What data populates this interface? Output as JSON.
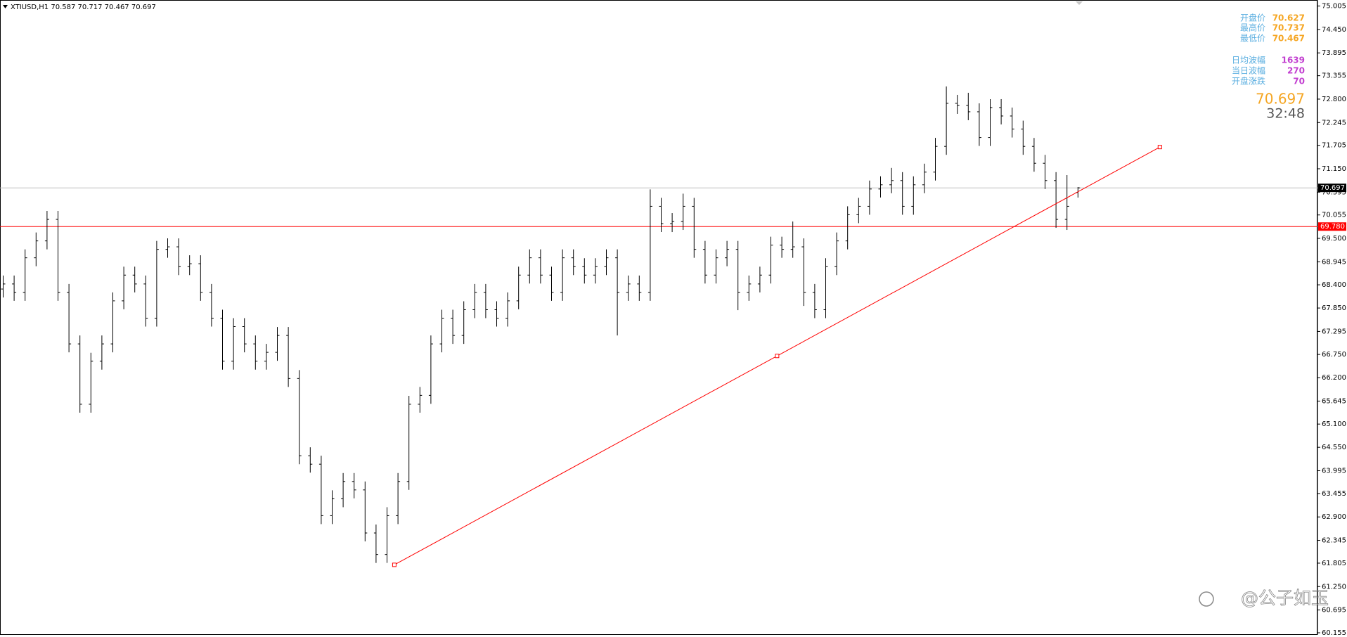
{
  "chart_data": {
    "type": "ohlc",
    "title": "XTIUSD,H1 70.587 70.717 70.467 70.697",
    "color": "#000000",
    "bars": [
      [
        68.3,
        68.62,
        68.1,
        68.42
      ],
      [
        68.42,
        68.62,
        68.02,
        68.22
      ],
      [
        68.22,
        69.24,
        68.02,
        69.04
      ],
      [
        69.04,
        69.64,
        68.84,
        69.44
      ],
      [
        69.44,
        70.15,
        69.24,
        69.95
      ],
      [
        69.95,
        70.15,
        68.02,
        68.22
      ],
      [
        68.22,
        68.42,
        66.8,
        67.0
      ],
      [
        67.0,
        67.2,
        65.37,
        65.57
      ],
      [
        65.57,
        66.79,
        65.37,
        66.59
      ],
      [
        66.59,
        67.2,
        66.39,
        67.0
      ],
      [
        67.0,
        68.22,
        66.8,
        68.02
      ],
      [
        68.02,
        68.83,
        67.82,
        68.63
      ],
      [
        68.63,
        68.83,
        68.22,
        68.42
      ],
      [
        68.42,
        68.62,
        67.41,
        67.61
      ],
      [
        67.61,
        69.44,
        67.41,
        69.24
      ],
      [
        69.24,
        69.5,
        69.04,
        69.3
      ],
      [
        69.3,
        69.5,
        68.63,
        68.83
      ],
      [
        68.83,
        69.1,
        68.63,
        68.9
      ],
      [
        68.9,
        69.1,
        68.02,
        68.22
      ],
      [
        68.22,
        68.42,
        67.41,
        67.61
      ],
      [
        67.61,
        67.81,
        66.39,
        66.59
      ],
      [
        66.59,
        67.61,
        66.39,
        67.41
      ],
      [
        67.41,
        67.61,
        66.8,
        67.0
      ],
      [
        67.0,
        67.2,
        66.39,
        66.59
      ],
      [
        66.59,
        67.0,
        66.39,
        66.8
      ],
      [
        66.8,
        67.4,
        66.6,
        67.2
      ],
      [
        67.2,
        67.4,
        65.98,
        66.18
      ],
      [
        66.18,
        66.38,
        64.15,
        64.35
      ],
      [
        64.35,
        64.55,
        63.95,
        64.15
      ],
      [
        64.15,
        64.35,
        62.73,
        62.93
      ],
      [
        62.93,
        63.53,
        62.73,
        63.33
      ],
      [
        63.33,
        63.94,
        63.13,
        63.74
      ],
      [
        63.74,
        63.94,
        63.34,
        63.54
      ],
      [
        63.54,
        63.74,
        62.32,
        62.52
      ],
      [
        62.52,
        62.72,
        61.81,
        62.01
      ],
      [
        62.01,
        63.13,
        61.81,
        62.93
      ],
      [
        62.93,
        63.94,
        62.73,
        63.74
      ],
      [
        63.74,
        65.77,
        63.54,
        65.57
      ],
      [
        65.57,
        65.98,
        65.37,
        65.78
      ],
      [
        65.78,
        67.2,
        65.58,
        67.0
      ],
      [
        67.0,
        67.81,
        66.8,
        67.61
      ],
      [
        67.61,
        67.81,
        67.0,
        67.2
      ],
      [
        67.2,
        68.01,
        67.0,
        67.81
      ],
      [
        67.81,
        68.42,
        67.61,
        68.22
      ],
      [
        68.22,
        68.42,
        67.61,
        67.81
      ],
      [
        67.81,
        68.01,
        67.41,
        67.61
      ],
      [
        67.61,
        68.22,
        67.41,
        68.02
      ],
      [
        68.02,
        68.83,
        67.82,
        68.63
      ],
      [
        68.63,
        69.24,
        68.43,
        69.04
      ],
      [
        69.04,
        69.24,
        68.43,
        68.63
      ],
      [
        68.63,
        68.83,
        68.02,
        68.22
      ],
      [
        68.22,
        69.24,
        68.02,
        69.04
      ],
      [
        69.04,
        69.24,
        68.63,
        68.83
      ],
      [
        68.83,
        69.03,
        68.43,
        68.63
      ],
      [
        68.63,
        69.03,
        68.43,
        68.83
      ],
      [
        68.83,
        69.24,
        68.63,
        69.04
      ],
      [
        69.04,
        69.24,
        67.2,
        68.22
      ],
      [
        68.22,
        68.62,
        68.02,
        68.42
      ],
      [
        68.42,
        68.62,
        68.02,
        68.22
      ],
      [
        68.22,
        70.66,
        68.02,
        70.26
      ],
      [
        70.26,
        70.46,
        69.65,
        69.85
      ],
      [
        69.85,
        70.1,
        69.65,
        69.9
      ],
      [
        69.9,
        70.56,
        69.7,
        70.26
      ],
      [
        70.26,
        70.46,
        69.04,
        69.24
      ],
      [
        69.24,
        69.44,
        68.43,
        68.63
      ],
      [
        68.63,
        69.24,
        68.43,
        69.04
      ],
      [
        69.04,
        69.44,
        68.84,
        69.24
      ],
      [
        69.24,
        69.44,
        67.8,
        68.22
      ],
      [
        68.22,
        68.62,
        68.02,
        68.42
      ],
      [
        68.42,
        68.83,
        68.22,
        68.63
      ],
      [
        68.63,
        69.54,
        68.43,
        69.34
      ],
      [
        69.34,
        69.54,
        69.04,
        69.24
      ],
      [
        69.24,
        69.9,
        69.04,
        69.3
      ],
      [
        69.3,
        69.5,
        67.9,
        68.22
      ],
      [
        68.22,
        68.42,
        67.61,
        67.81
      ],
      [
        67.81,
        69.03,
        67.61,
        68.83
      ],
      [
        68.83,
        69.64,
        68.63,
        69.44
      ],
      [
        69.44,
        70.26,
        69.24,
        70.06
      ],
      [
        70.06,
        70.46,
        69.86,
        70.26
      ],
      [
        70.26,
        70.87,
        70.06,
        70.67
      ],
      [
        70.67,
        70.97,
        70.47,
        70.77
      ],
      [
        70.77,
        71.17,
        70.57,
        70.87
      ],
      [
        70.87,
        71.07,
        70.06,
        70.26
      ],
      [
        70.26,
        70.97,
        70.06,
        70.77
      ],
      [
        70.77,
        71.27,
        70.57,
        71.07
      ],
      [
        71.07,
        71.88,
        70.87,
        71.68
      ],
      [
        71.68,
        73.1,
        71.48,
        72.7
      ],
      [
        72.7,
        72.9,
        72.45,
        72.65
      ],
      [
        72.65,
        72.95,
        72.3,
        72.5
      ],
      [
        72.5,
        72.7,
        71.69,
        71.89
      ],
      [
        71.89,
        72.8,
        71.69,
        72.6
      ],
      [
        72.6,
        72.8,
        72.2,
        72.4
      ],
      [
        72.4,
        72.6,
        71.89,
        72.09
      ],
      [
        72.09,
        72.29,
        71.48,
        71.68
      ],
      [
        71.68,
        71.88,
        71.08,
        71.28
      ],
      [
        71.28,
        71.48,
        70.67,
        70.87
      ],
      [
        70.87,
        71.07,
        69.75,
        69.95
      ],
      [
        69.95,
        71.0,
        69.7,
        70.26
      ],
      [
        70.587,
        70.717,
        70.467,
        70.697
      ]
    ],
    "ylim": [
      60.155,
      75.005
    ],
    "yticks": [
      75.005,
      {
        "value": 74.45,
        "label": "74.450"
      },
      73.895,
      73.355,
      {
        "value": 72.8,
        "label": "72.800"
      },
      72.245,
      71.705,
      {
        "value": 71.15,
        "label": "71.150"
      },
      70.595,
      70.055,
      {
        "value": 69.5,
        "label": "69.500"
      },
      68.945,
      {
        "value": 68.4,
        "label": "68.400"
      },
      {
        "value": 67.85,
        "label": "67.850"
      },
      67.295,
      {
        "value": 66.75,
        "label": "66.750"
      },
      {
        "value": 66.2,
        "label": "66.200"
      },
      65.645,
      {
        "value": 65.1,
        "label": "65.100"
      },
      {
        "value": 64.55,
        "label": "64.550"
      },
      63.995,
      63.455,
      {
        "value": 62.9,
        "label": "62.900"
      },
      62.345,
      61.805,
      {
        "value": 61.25,
        "label": "61.250"
      },
      60.695,
      60.155
    ],
    "hlines": [
      {
        "value": 70.697,
        "label": "70.697",
        "color": "#c0c0c0",
        "label_bg": "#000000"
      },
      {
        "value": 69.78,
        "label": "69.780",
        "color": "#ff0000",
        "label_bg": "#ff0000"
      }
    ],
    "trendline": {
      "x": [
        35.7,
        105.5
      ],
      "y": [
        61.765,
        71.664
      ],
      "color": "#ff0000"
    },
    "info_panel": {
      "rows": [
        {
          "label": "开盘价",
          "value": 70.627,
          "color": "#f5a623"
        },
        {
          "label": "最高价",
          "value": 70.737,
          "color": "#f5a623"
        },
        {
          "label": "最低价",
          "value": 70.467,
          "color": "#f5a623"
        },
        {
          "label": "日均波幅",
          "value": 1639,
          "color": "#c23fd0"
        },
        {
          "label": "当日波幅",
          "value": 270,
          "color": "#c23fd0"
        },
        {
          "label": "开盘涨跌",
          "value": 70,
          "color": "#c23fd0"
        }
      ],
      "price": 70.697,
      "timer": "32:48"
    },
    "watermark": "@公子如玉"
  }
}
